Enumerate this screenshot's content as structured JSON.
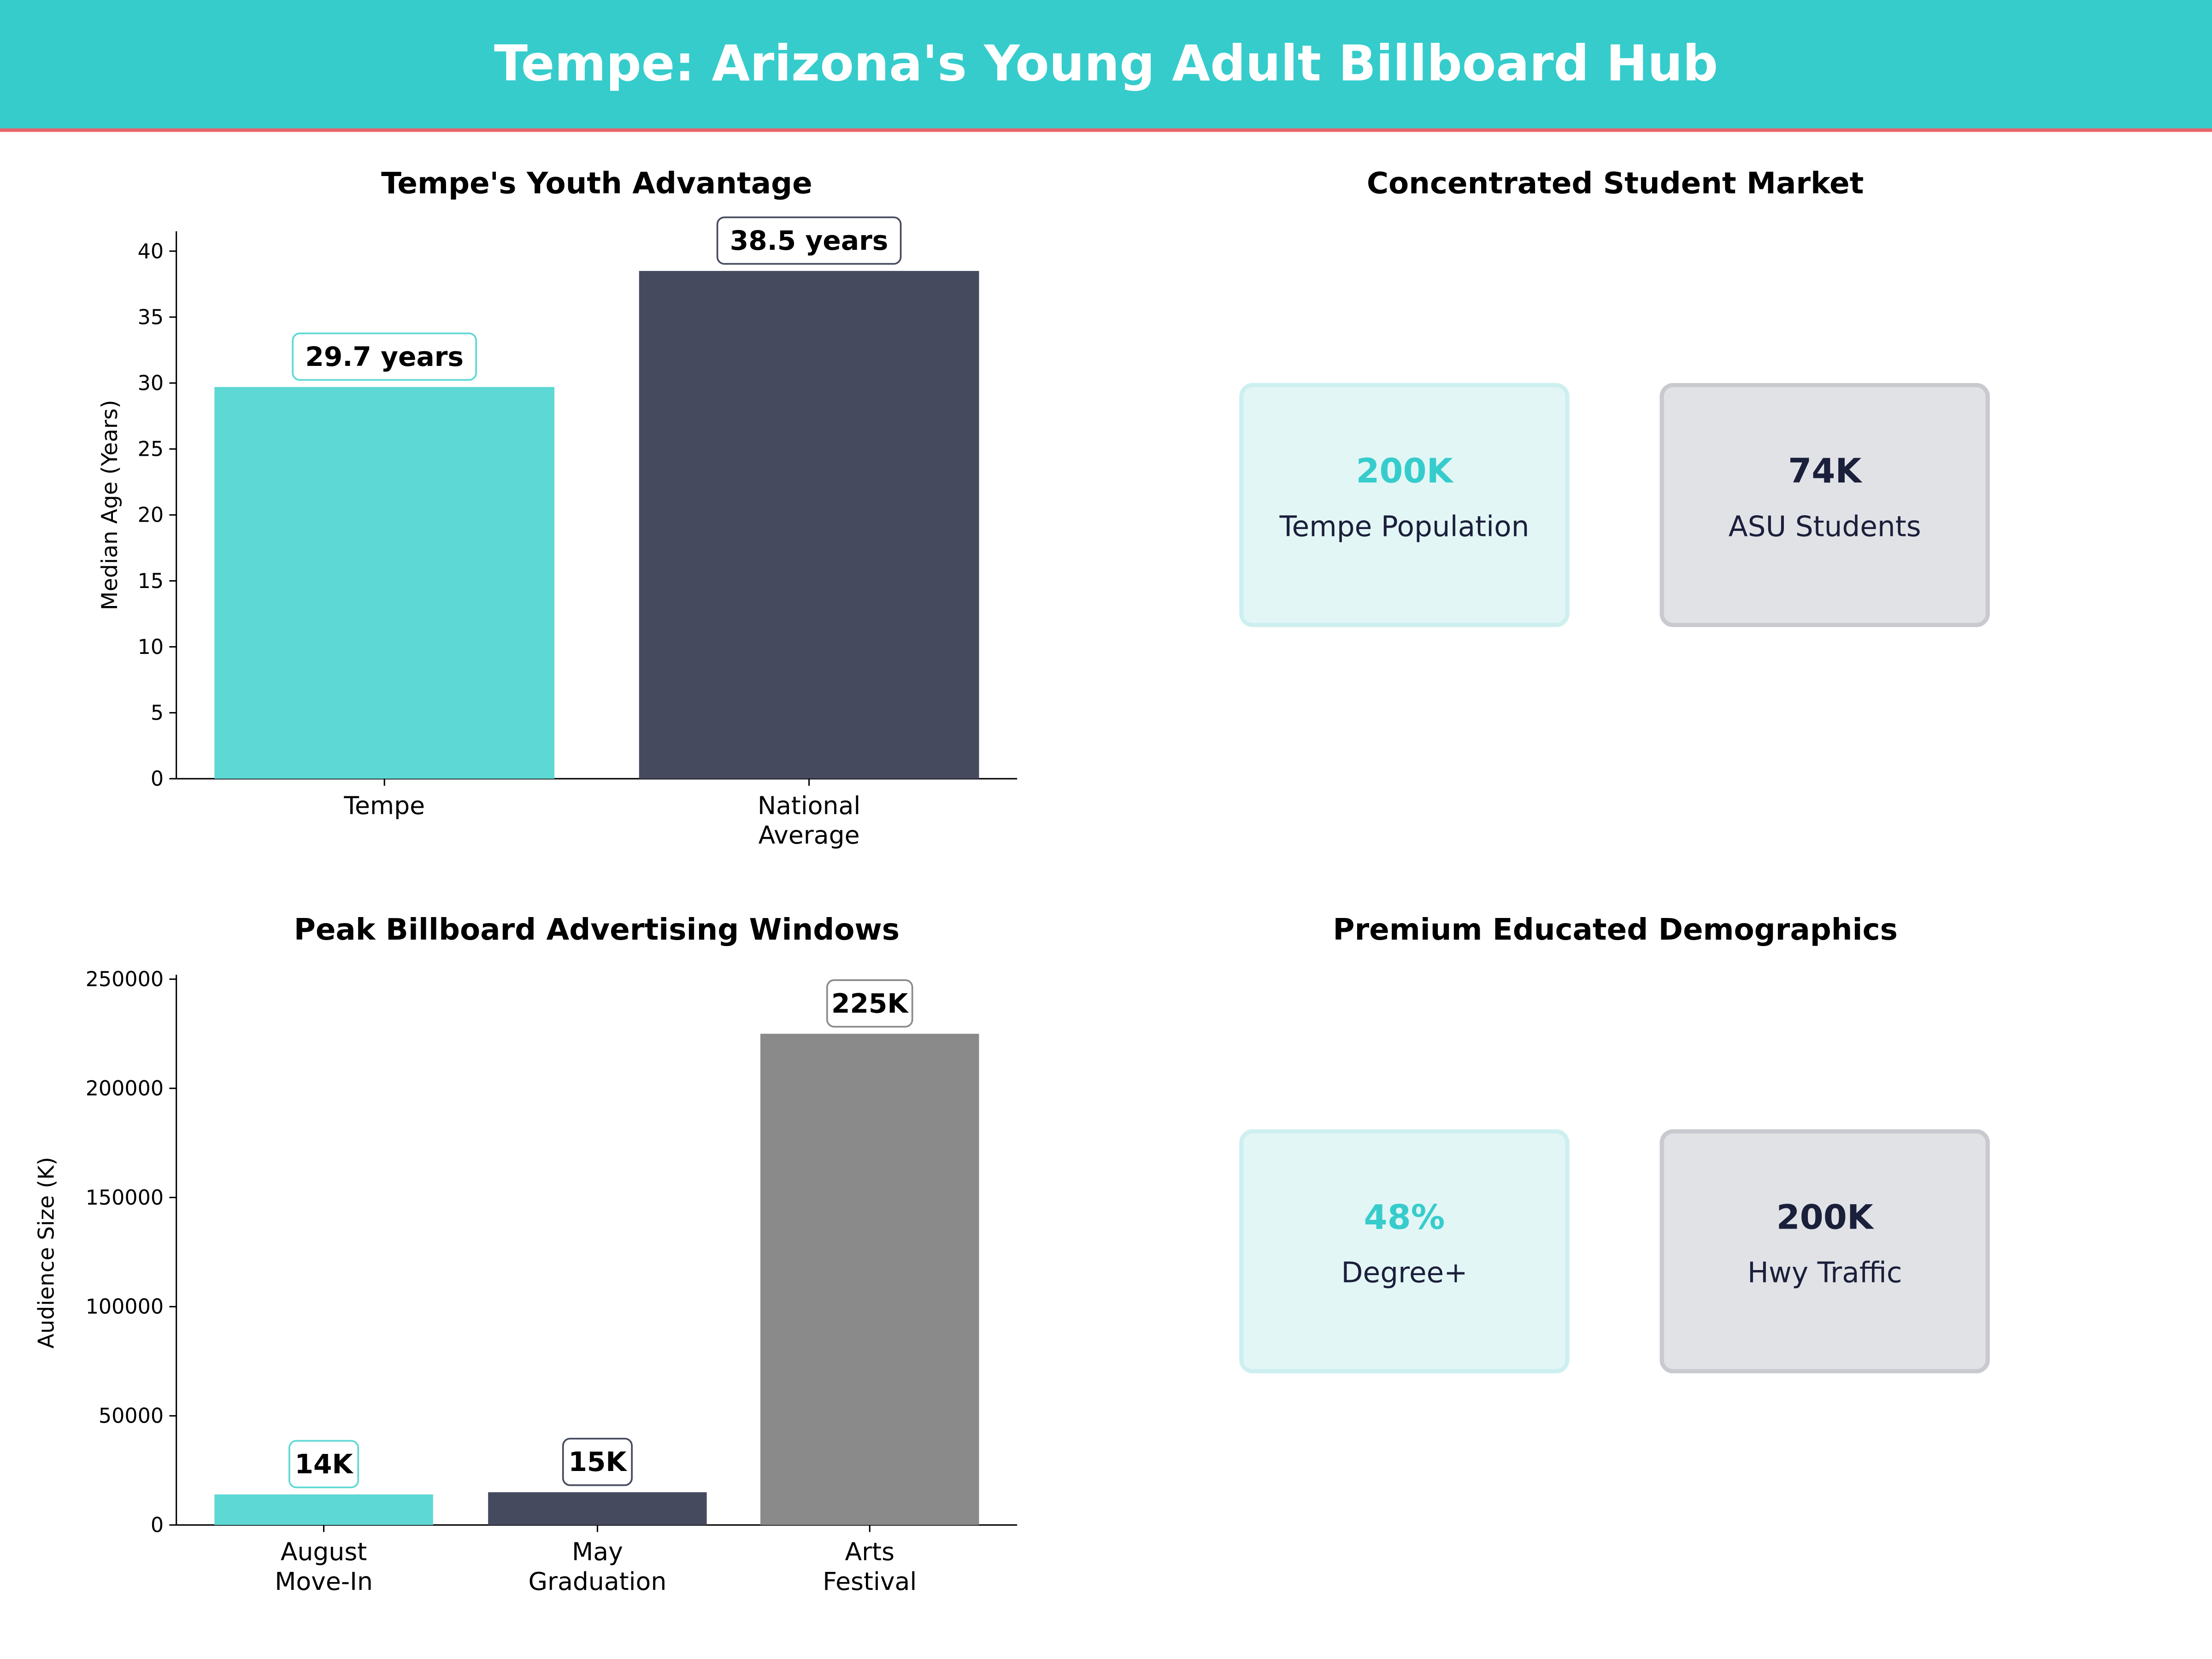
{
  "header": {
    "title": "Tempe: Arizona's Young Adult Billboard Hub",
    "bg_color": "#36cccc",
    "underline_color": "#e8636b"
  },
  "colors": {
    "teal": "#5dd8d4",
    "navy": "#464a5f",
    "gray": "#8a8a8a",
    "dark_text": "#1a1f3a",
    "teal_text": "#36cccc"
  },
  "chart_data": [
    {
      "type": "bar",
      "title": "Tempe's Youth Advantage",
      "categories": [
        "Tempe",
        "National\nAverage"
      ],
      "values": [
        29.7,
        38.5
      ],
      "data_labels": [
        "29.7 years",
        "38.5 years"
      ],
      "xlabel": "",
      "ylabel": "Median Age (Years)",
      "ylim": [
        0,
        41.5
      ],
      "yticks": [
        0,
        5,
        10,
        15,
        20,
        25,
        30,
        35,
        40
      ],
      "grid": false
    },
    {
      "type": "bar",
      "title": "Peak Billboard Advertising Windows",
      "categories": [
        "August\nMove-In",
        "May\nGraduation",
        "Arts\nFestival"
      ],
      "values": [
        14000,
        15000,
        225000
      ],
      "data_labels": [
        "14K",
        "15K",
        "225K"
      ],
      "xlabel": "",
      "ylabel": "Audience Size (K)",
      "ylim": [
        0,
        252000
      ],
      "yticks": [
        0,
        50000,
        100000,
        150000,
        200000,
        250000
      ],
      "grid": false
    }
  ],
  "panels": {
    "market": {
      "title": "Concentrated Student Market",
      "cards": [
        {
          "value": "200K",
          "label": "Tempe Population",
          "style": "teal"
        },
        {
          "value": "74K",
          "label": "ASU Students",
          "style": "navy"
        }
      ]
    },
    "demographics": {
      "title": "Premium Educated Demographics",
      "cards": [
        {
          "value": "48%",
          "label": "Degree+",
          "style": "teal"
        },
        {
          "value": "200K",
          "label": "Hwy Traffic",
          "style": "navy"
        }
      ]
    }
  }
}
